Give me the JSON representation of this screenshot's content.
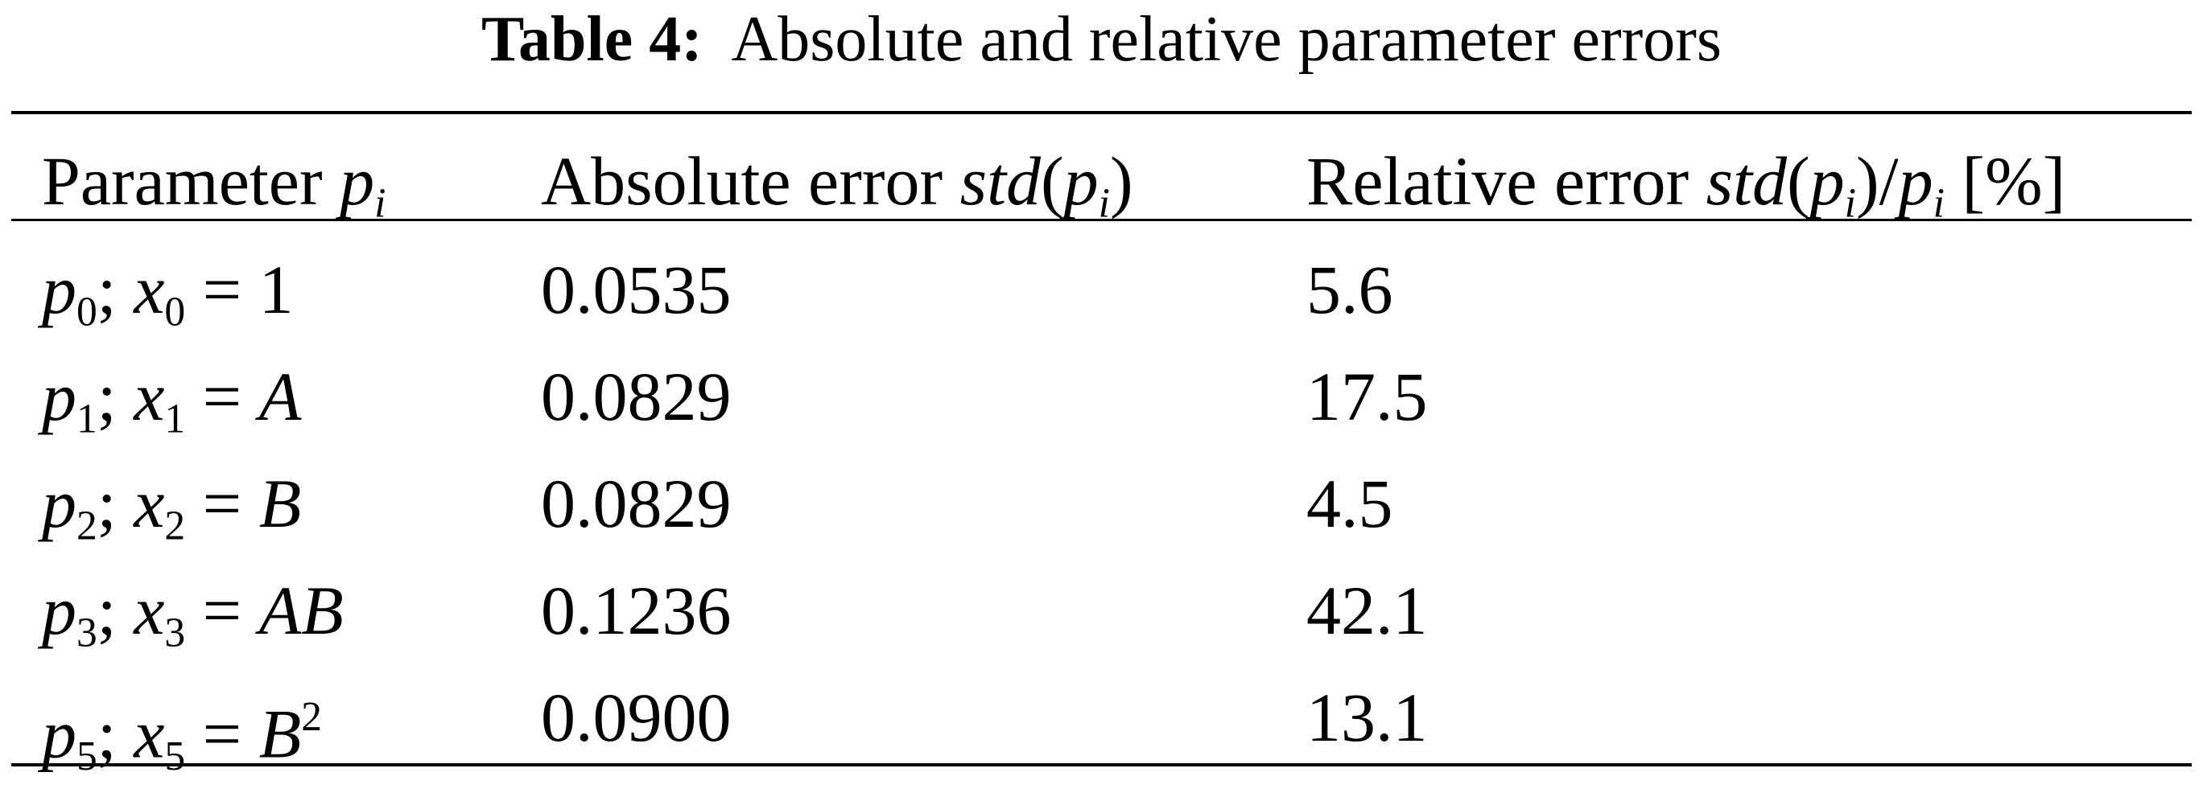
{
  "title": {
    "label": "Table 4:",
    "text": "Absolute and relative parameter errors"
  },
  "table": {
    "header": [
      [
        {
          "t": "Parameter "
        },
        {
          "t": "p",
          "s": "i"
        },
        {
          "t": "i",
          "s": "isub"
        }
      ],
      [
        {
          "t": "Absolute error "
        },
        {
          "t": "std",
          "s": "i"
        },
        {
          "t": "("
        },
        {
          "t": "p",
          "s": "i"
        },
        {
          "t": "i",
          "s": "isub"
        },
        {
          "t": ")"
        }
      ],
      [
        {
          "t": "Relative error "
        },
        {
          "t": "std",
          "s": "i"
        },
        {
          "t": "("
        },
        {
          "t": "p",
          "s": "i"
        },
        {
          "t": "i",
          "s": "isub"
        },
        {
          "t": ")/"
        },
        {
          "t": "p",
          "s": "i"
        },
        {
          "t": "i",
          "s": "isub"
        },
        {
          "t": " [%]"
        }
      ]
    ],
    "rows": [
      [
        [
          {
            "t": "p",
            "s": "i"
          },
          {
            "t": "0",
            "s": "sub"
          },
          {
            "t": "; "
          },
          {
            "t": "x",
            "s": "i"
          },
          {
            "t": "0",
            "s": "sub"
          },
          {
            "t": " = 1"
          }
        ],
        [
          {
            "t": "0.0535"
          }
        ],
        [
          {
            "t": "5.6"
          }
        ]
      ],
      [
        [
          {
            "t": "p",
            "s": "i"
          },
          {
            "t": "1",
            "s": "sub"
          },
          {
            "t": "; "
          },
          {
            "t": "x",
            "s": "i"
          },
          {
            "t": "1",
            "s": "sub"
          },
          {
            "t": " = "
          },
          {
            "t": "A",
            "s": "i"
          }
        ],
        [
          {
            "t": "0.0829"
          }
        ],
        [
          {
            "t": "17.5"
          }
        ]
      ],
      [
        [
          {
            "t": "p",
            "s": "i"
          },
          {
            "t": "2",
            "s": "sub"
          },
          {
            "t": "; "
          },
          {
            "t": "x",
            "s": "i"
          },
          {
            "t": "2",
            "s": "sub"
          },
          {
            "t": " = "
          },
          {
            "t": "B",
            "s": "i"
          }
        ],
        [
          {
            "t": "0.0829"
          }
        ],
        [
          {
            "t": "4.5"
          }
        ]
      ],
      [
        [
          {
            "t": "p",
            "s": "i"
          },
          {
            "t": "3",
            "s": "sub"
          },
          {
            "t": "; "
          },
          {
            "t": "x",
            "s": "i"
          },
          {
            "t": "3",
            "s": "sub"
          },
          {
            "t": " = "
          },
          {
            "t": "AB",
            "s": "i"
          }
        ],
        [
          {
            "t": "0.1236"
          }
        ],
        [
          {
            "t": "42.1"
          }
        ]
      ],
      [
        [
          {
            "t": "p",
            "s": "i"
          },
          {
            "t": "5",
            "s": "sub"
          },
          {
            "t": "; "
          },
          {
            "t": "x",
            "s": "i"
          },
          {
            "t": "5",
            "s": "sub"
          },
          {
            "t": " = "
          },
          {
            "t": "B",
            "s": "i"
          },
          {
            "t": "2",
            "s": "sup"
          }
        ],
        [
          {
            "t": "0.0900"
          }
        ],
        [
          {
            "t": "13.1"
          }
        ]
      ]
    ]
  }
}
